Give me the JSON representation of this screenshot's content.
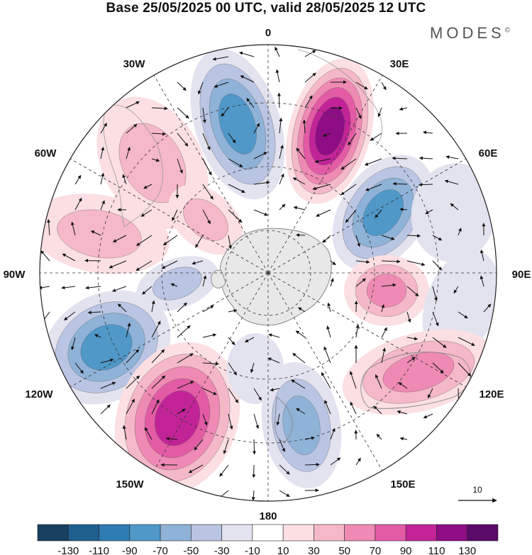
{
  "title": "Base 25/05/2025 00 UTC, valid 28/05/2025 12 UTC",
  "brand": "MODES",
  "brand_mark": "©",
  "longitude_labels": {
    "lon_0": "0",
    "lon_30e": "30E",
    "lon_60e": "60E",
    "lon_90e": "90E",
    "lon_120e": "120E",
    "lon_150e": "150E",
    "lon_180": "180",
    "lon_150w": "150W",
    "lon_120w": "120W",
    "lon_90w": "90W",
    "lon_60w": "60W",
    "lon_30w": "30W"
  },
  "vector_scale": {
    "label": "10"
  },
  "colorbar": {
    "colors": [
      "#173f5f",
      "#1f5f8f",
      "#2f7bb3",
      "#4f98c8",
      "#8fb2d8",
      "#b9c5e2",
      "#e3e2ef",
      "#ffffff",
      "#fbdfe3",
      "#f5b8c8",
      "#ee8ab3",
      "#e35ba5",
      "#c22497",
      "#8e0d85",
      "#5a0a68"
    ],
    "ticks": [
      "-130",
      "-110",
      "-90",
      "-70",
      "-50",
      "-30",
      "-10",
      "10",
      "30",
      "50",
      "70",
      "90",
      "110",
      "130"
    ]
  },
  "fill_colors": {
    "blue_light": "#e3e2ef",
    "blue_1": "#b9c5e2",
    "blue_2": "#8fb2d8",
    "blue_3": "#4f98c8",
    "blue_4": "#2f7bb3",
    "pink_1": "#fbdfe3",
    "pink_2": "#f5b8c8",
    "pink_3": "#ee8ab3",
    "pink_4": "#e35ba5",
    "pink_5": "#c22497",
    "pink_6": "#8e0d85",
    "antarctica": "#e8e8e8"
  }
}
